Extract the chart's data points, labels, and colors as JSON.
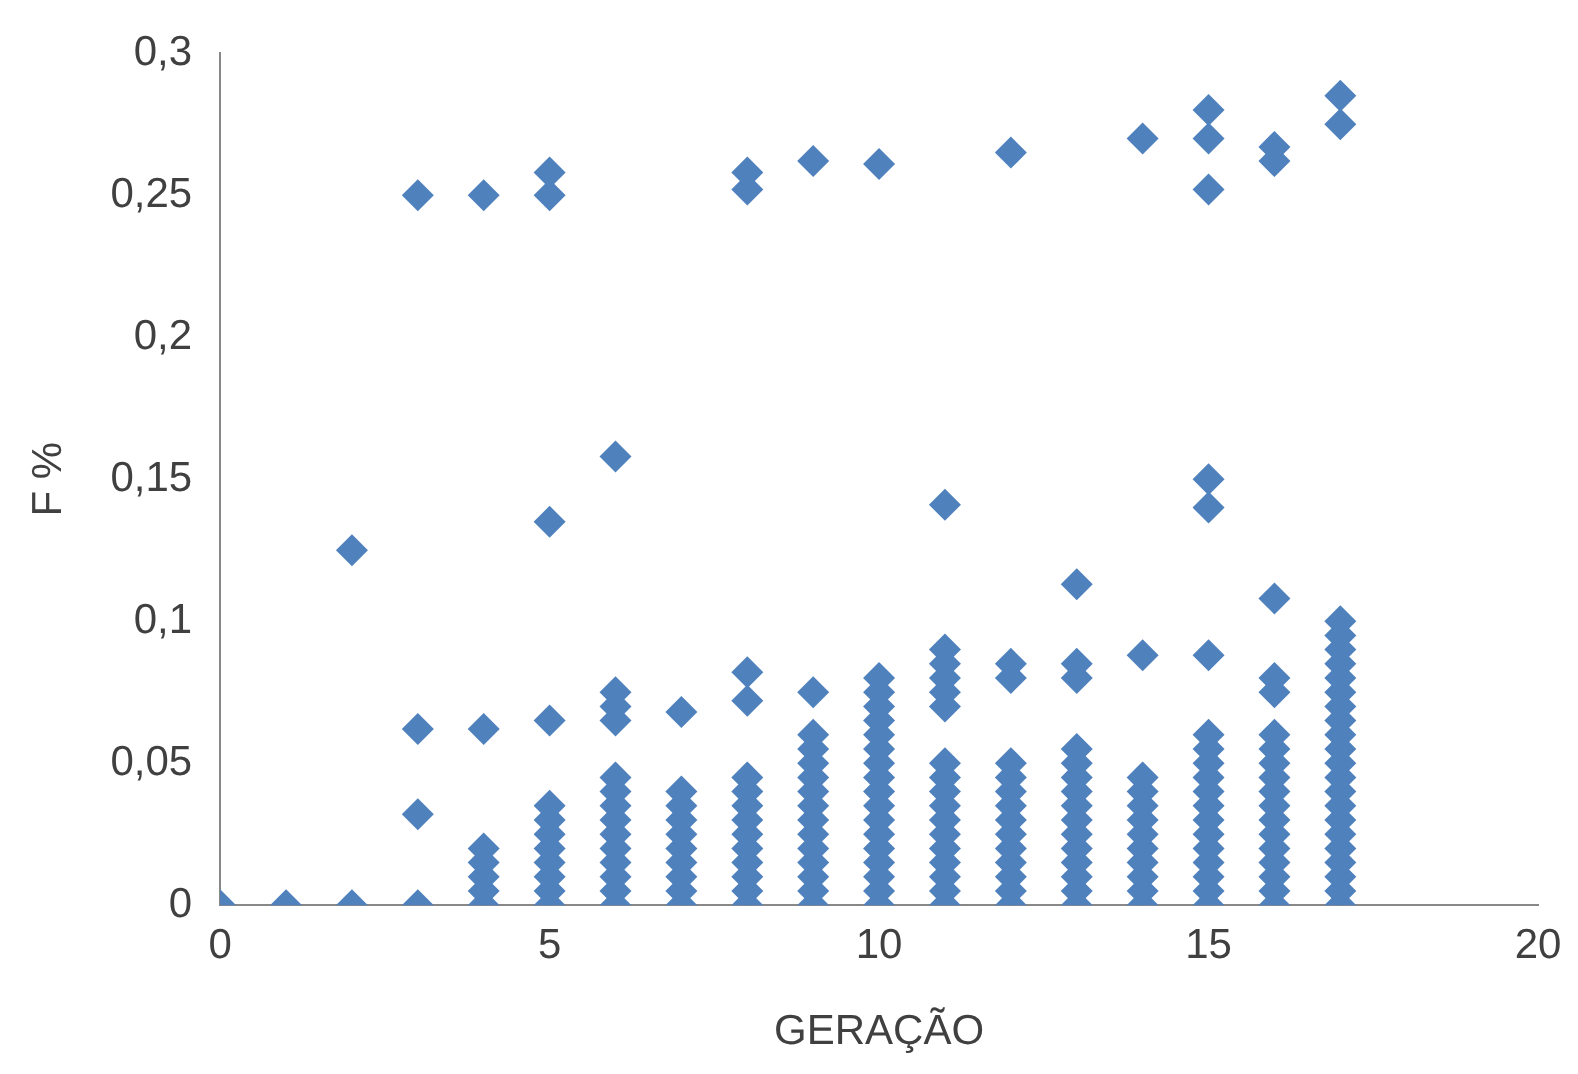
{
  "chart_data": {
    "type": "scatter",
    "xlabel": "GERAÇÃO",
    "ylabel": "F %",
    "xlim": [
      0,
      20
    ],
    "ylim": [
      0,
      0.3
    ],
    "xticks": [
      0,
      5,
      10,
      15,
      20
    ],
    "yticks": [
      0,
      {
        "value": 0.05,
        "label": "0,05"
      },
      {
        "value": 0.1,
        "label": "0,1"
      },
      {
        "value": 0.15,
        "label": "0,15"
      },
      {
        "value": 0.2,
        "label": "0,2"
      },
      {
        "value": 0.25,
        "label": "0,25"
      },
      {
        "value": 0.3,
        "label": "0,3"
      }
    ],
    "grid": false,
    "legend": false,
    "marker": "diamond",
    "series": [
      {
        "color": "#4f81bd",
        "x": [
          0,
          1,
          2,
          2
        ],
        "values": [
          0,
          0,
          0,
          0.125
        ]
      },
      {
        "color": "#4f81bd",
        "x": [
          3,
          3,
          3,
          3
        ],
        "values": [
          0,
          0.032,
          0.062,
          0.25
        ]
      },
      {
        "color": "#4f81bd",
        "x": [
          4,
          4,
          4,
          4,
          4,
          4,
          4
        ],
        "values": [
          0,
          0.005,
          0.01,
          0.015,
          0.02,
          0.062,
          0.25
        ]
      },
      {
        "color": "#4f81bd",
        "x": [
          5,
          5,
          5,
          5,
          5,
          5,
          5,
          5,
          5,
          5,
          5,
          5
        ],
        "values": [
          0,
          0.005,
          0.01,
          0.015,
          0.02,
          0.025,
          0.03,
          0.035,
          0.065,
          0.135,
          0.25,
          0.258
        ]
      },
      {
        "color": "#4f81bd",
        "x": [
          6,
          6,
          6,
          6,
          6,
          6,
          6,
          6,
          6,
          6,
          6,
          6,
          6,
          6
        ],
        "values": [
          0,
          0.005,
          0.01,
          0.015,
          0.02,
          0.025,
          0.03,
          0.035,
          0.04,
          0.045,
          0.065,
          0.07,
          0.075,
          0.158
        ]
      },
      {
        "color": "#4f81bd",
        "x": [
          7,
          7,
          7,
          7,
          7,
          7,
          7,
          7,
          7,
          7
        ],
        "values": [
          0,
          0.005,
          0.01,
          0.015,
          0.02,
          0.025,
          0.03,
          0.035,
          0.04,
          0.068
        ]
      },
      {
        "color": "#4f81bd",
        "x": [
          8,
          8,
          8,
          8,
          8,
          8,
          8,
          8,
          8,
          8,
          8,
          8,
          8,
          8
        ],
        "values": [
          0,
          0.005,
          0.01,
          0.015,
          0.02,
          0.025,
          0.03,
          0.035,
          0.04,
          0.045,
          0.072,
          0.082,
          0.252,
          0.258
        ]
      },
      {
        "color": "#4f81bd",
        "x": [
          9,
          9,
          9,
          9,
          9,
          9,
          9,
          9,
          9,
          9,
          9,
          9,
          9,
          9,
          9
        ],
        "values": [
          0,
          0.005,
          0.01,
          0.015,
          0.02,
          0.025,
          0.03,
          0.035,
          0.04,
          0.045,
          0.05,
          0.055,
          0.06,
          0.075,
          0.262
        ]
      },
      {
        "color": "#4f81bd",
        "x": [
          10,
          10,
          10,
          10,
          10,
          10,
          10,
          10,
          10,
          10,
          10,
          10,
          10,
          10,
          10,
          10,
          10,
          10
        ],
        "values": [
          0,
          0.005,
          0.01,
          0.015,
          0.02,
          0.025,
          0.03,
          0.035,
          0.04,
          0.045,
          0.05,
          0.055,
          0.06,
          0.065,
          0.07,
          0.075,
          0.08,
          0.261
        ]
      },
      {
        "color": "#4f81bd",
        "x": [
          11,
          11,
          11,
          11,
          11,
          11,
          11,
          11,
          11,
          11,
          11,
          11,
          11,
          11,
          11,
          11,
          11
        ],
        "values": [
          0,
          0.005,
          0.01,
          0.015,
          0.02,
          0.025,
          0.03,
          0.035,
          0.04,
          0.045,
          0.05,
          0.07,
          0.075,
          0.08,
          0.085,
          0.09,
          0.141
        ]
      },
      {
        "color": "#4f81bd",
        "x": [
          12,
          12,
          12,
          12,
          12,
          12,
          12,
          12,
          12,
          12,
          12,
          12,
          12,
          12
        ],
        "values": [
          0,
          0.005,
          0.01,
          0.015,
          0.02,
          0.025,
          0.03,
          0.035,
          0.04,
          0.045,
          0.05,
          0.08,
          0.085,
          0.265
        ]
      },
      {
        "color": "#4f81bd",
        "x": [
          13,
          13,
          13,
          13,
          13,
          13,
          13,
          13,
          13,
          13,
          13,
          13,
          13,
          13,
          13
        ],
        "values": [
          0,
          0.005,
          0.01,
          0.015,
          0.02,
          0.025,
          0.03,
          0.035,
          0.04,
          0.045,
          0.05,
          0.055,
          0.08,
          0.085,
          0.113
        ]
      },
      {
        "color": "#4f81bd",
        "x": [
          14,
          14,
          14,
          14,
          14,
          14,
          14,
          14,
          14,
          14,
          14,
          14
        ],
        "values": [
          0,
          0.005,
          0.01,
          0.015,
          0.02,
          0.025,
          0.03,
          0.035,
          0.04,
          0.045,
          0.088,
          0.27
        ]
      },
      {
        "color": "#4f81bd",
        "x": [
          15,
          15,
          15,
          15,
          15,
          15,
          15,
          15,
          15,
          15,
          15,
          15,
          15,
          15,
          15,
          15,
          15,
          15,
          15
        ],
        "values": [
          0,
          0.005,
          0.01,
          0.015,
          0.02,
          0.025,
          0.03,
          0.035,
          0.04,
          0.045,
          0.05,
          0.055,
          0.06,
          0.088,
          0.14,
          0.15,
          0.252,
          0.27,
          0.28
        ]
      },
      {
        "color": "#4f81bd",
        "x": [
          16,
          16,
          16,
          16,
          16,
          16,
          16,
          16,
          16,
          16,
          16,
          16,
          16,
          16,
          16,
          16,
          16,
          16
        ],
        "values": [
          0,
          0.005,
          0.01,
          0.015,
          0.02,
          0.025,
          0.03,
          0.035,
          0.04,
          0.045,
          0.05,
          0.055,
          0.06,
          0.075,
          0.08,
          0.108,
          0.262,
          0.267
        ]
      },
      {
        "color": "#4f81bd",
        "x": [
          17,
          17,
          17,
          17,
          17,
          17,
          17,
          17,
          17,
          17,
          17,
          17,
          17,
          17,
          17,
          17,
          17,
          17,
          17,
          17,
          17,
          17,
          17
        ],
        "values": [
          0,
          0.005,
          0.01,
          0.015,
          0.02,
          0.025,
          0.03,
          0.035,
          0.04,
          0.045,
          0.05,
          0.055,
          0.06,
          0.065,
          0.07,
          0.075,
          0.08,
          0.085,
          0.09,
          0.095,
          0.1,
          0.275,
          0.285
        ]
      }
    ]
  }
}
